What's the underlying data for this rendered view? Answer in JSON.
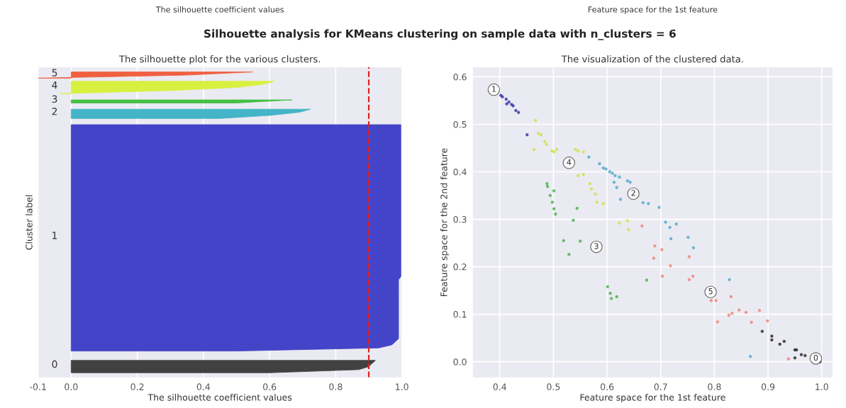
{
  "chart_data": [
    {
      "type": "area",
      "orientation": "horizontal",
      "title": "The silhouette plot for the various clusters.",
      "xlabel": "The silhouette coefficient values",
      "ylabel": "Cluster label",
      "xlim": [
        -0.1,
        1.0
      ],
      "xticks": [
        {
          "value": -0.1,
          "label": "-0.1"
        },
        {
          "value": 0.0,
          "label": "0.0"
        },
        {
          "value": 0.2,
          "label": "0.2"
        },
        {
          "value": 0.4,
          "label": "0.4"
        },
        {
          "value": 0.6,
          "label": "0.6"
        },
        {
          "value": 0.8,
          "label": "0.8"
        },
        {
          "value": 1.0,
          "label": "1.0"
        }
      ],
      "categories": [
        null,
        null,
        null,
        null,
        null,
        null,
        null,
        null,
        null,
        null,
        null,
        null,
        null,
        null,
        null,
        null,
        null,
        null,
        null,
        null,
        null,
        null,
        null,
        null,
        null,
        null,
        null,
        null,
        null,
        null,
        null,
        null,
        null,
        null,
        null,
        null,
        null,
        null,
        null,
        null,
        null,
        null,
        null,
        null,
        null,
        null,
        null,
        null,
        null,
        null,
        null,
        null,
        null,
        null,
        null,
        null,
        null,
        null,
        null,
        null,
        null,
        null,
        null,
        null,
        null,
        null,
        null,
        null,
        null,
        null,
        null,
        null,
        null,
        null,
        null,
        null,
        null,
        null,
        null,
        null,
        null,
        null,
        null,
        null,
        null,
        null,
        null,
        null,
        null,
        null,
        null,
        null,
        null,
        null,
        null,
        null,
        null,
        null,
        null,
        null
      ],
      "tick_labels": "x",
      "grid": true,
      "legend": false,
      "series": [
        {
          "color": "#414141",
          "values": [
            null,
            null,
            null,
            null,
            null,
            null,
            null,
            null,
            null,
            null,
            null,
            null,
            null,
            null,
            null,
            null,
            null,
            null,
            null,
            null,
            null,
            null,
            null,
            null,
            null,
            null,
            null,
            null,
            null,
            null,
            null,
            null,
            null,
            null,
            null,
            null,
            null,
            null,
            null,
            null,
            null,
            null,
            null,
            null,
            null,
            null,
            null,
            null,
            null,
            null,
            null,
            null,
            null,
            null,
            null,
            null,
            null,
            null,
            null,
            null,
            null,
            null,
            null,
            null,
            null,
            null,
            null,
            null,
            null,
            null,
            null,
            null,
            null,
            null,
            null,
            null,
            null,
            null,
            null,
            null,
            null,
            null,
            null,
            null,
            null,
            null,
            null,
            null,
            null,
            null,
            null,
            null,
            null,
            null,
            0.92,
            0.91,
            0.9,
            0.87,
            0.6,
            null
          ]
        },
        {
          "color": "#4444c8",
          "values": [
            null,
            null,
            null,
            null,
            null,
            null,
            null,
            null,
            null,
            null,
            null,
            null,
            null,
            null,
            null,
            null,
            null,
            null,
            0.997,
            0.997,
            0.997,
            0.997,
            0.997,
            0.997,
            0.997,
            0.997,
            0.997,
            0.997,
            0.997,
            0.997,
            0.997,
            0.997,
            0.997,
            0.997,
            0.997,
            0.997,
            0.997,
            0.997,
            0.997,
            0.997,
            0.997,
            0.997,
            0.997,
            0.997,
            0.997,
            0.997,
            0.997,
            0.997,
            0.997,
            0.997,
            0.997,
            0.997,
            0.997,
            0.997,
            0.997,
            0.997,
            0.997,
            0.997,
            0.997,
            0.997,
            0.997,
            0.997,
            0.997,
            0.997,
            0.997,
            0.997,
            0.997,
            0.997,
            0.99,
            0.99,
            0.99,
            0.99,
            0.99,
            0.99,
            0.99,
            0.99,
            0.99,
            0.99,
            0.99,
            0.99,
            0.99,
            0.99,
            0.99,
            0.99,
            0.99,
            0.99,
            0.99,
            0.99,
            0.98,
            0.97,
            0.93,
            0.5,
            null,
            null,
            null,
            null,
            null,
            null,
            null,
            null
          ]
        },
        {
          "color": "#44b4c8",
          "values": [
            null,
            null,
            null,
            null,
            null,
            null,
            null,
            null,
            null,
            null,
            null,
            null,
            null,
            0.724,
            0.69,
            0.6,
            0.45,
            null,
            null,
            null,
            null,
            null,
            null,
            null,
            null,
            null,
            null,
            null,
            null,
            null,
            null,
            null,
            null,
            null,
            null,
            null,
            null,
            null,
            null,
            null,
            null,
            null,
            null,
            null,
            null,
            null,
            null,
            null,
            null,
            null,
            null,
            null,
            null,
            null,
            null,
            null,
            null,
            null,
            null,
            null,
            null,
            null,
            null,
            null,
            null,
            null,
            null,
            null,
            null,
            null,
            null,
            null,
            null,
            null,
            null,
            null,
            null,
            null,
            null,
            null,
            null,
            null,
            null,
            null,
            null,
            null,
            null,
            null,
            null,
            null,
            null,
            null,
            null,
            null,
            null,
            null,
            null,
            null,
            null,
            null
          ]
        },
        {
          "color": "#44c044",
          "values": [
            null,
            null,
            null,
            null,
            null,
            null,
            null,
            null,
            null,
            null,
            0.668,
            0.5,
            null,
            null,
            null,
            null,
            null,
            null,
            null,
            null,
            null,
            null,
            null,
            null,
            null,
            null,
            null,
            null,
            null,
            null,
            null,
            null,
            null,
            null,
            null,
            null,
            null,
            null,
            null,
            null,
            null,
            null,
            null,
            null,
            null,
            null,
            null,
            null,
            null,
            null,
            null,
            null,
            null,
            null,
            null,
            null,
            null,
            null,
            null,
            null,
            null,
            null,
            null,
            null,
            null,
            null,
            null,
            null,
            null,
            null,
            null,
            null,
            null,
            null,
            null,
            null,
            null,
            null,
            null,
            null,
            null,
            null,
            null,
            null,
            null,
            null,
            null,
            null,
            null,
            null,
            null,
            null,
            null,
            null,
            null,
            null,
            null,
            null,
            null,
            null
          ]
        },
        {
          "color": "#d8f040",
          "values": [
            null,
            null,
            null,
            null,
            0.615,
            0.58,
            0.5,
            0.3,
            -0.035,
            null,
            null,
            null,
            null,
            null,
            null,
            null,
            null,
            null,
            null,
            null,
            null,
            null,
            null,
            null,
            null,
            null,
            null,
            null,
            null,
            null,
            null,
            null,
            null,
            null,
            null,
            null,
            null,
            null,
            null,
            null,
            null,
            null,
            null,
            null,
            null,
            null,
            null,
            null,
            null,
            null,
            null,
            null,
            null,
            null,
            null,
            null,
            null,
            null,
            null,
            null,
            null,
            null,
            null,
            null,
            null,
            null,
            null,
            null,
            null,
            null,
            null,
            null,
            null,
            null,
            null,
            null,
            null,
            null,
            null,
            null,
            null,
            null,
            null,
            null,
            null,
            null,
            null,
            null,
            null,
            null,
            null,
            null,
            null,
            null,
            null,
            null,
            null,
            null,
            null,
            null
          ]
        },
        {
          "color": "#f06040",
          "values": [
            null,
            0.549,
            0.35,
            -0.1,
            null,
            null,
            null,
            null,
            null,
            null,
            null,
            null,
            null,
            null,
            null,
            null,
            null,
            null,
            null,
            null,
            null,
            null,
            null,
            null,
            null,
            null,
            null,
            null,
            null,
            null,
            null,
            null,
            null,
            null,
            null,
            null,
            null,
            null,
            null,
            null,
            null,
            null,
            null,
            null,
            null,
            null,
            null,
            null,
            null,
            null,
            null,
            null,
            null,
            null,
            null,
            null,
            null,
            null,
            null,
            null,
            null,
            null,
            null,
            null,
            null,
            null,
            null,
            null,
            null,
            null,
            null,
            null,
            null,
            null,
            null,
            null,
            null,
            null,
            null,
            null,
            null,
            null,
            null,
            null,
            null,
            null,
            null,
            null,
            null,
            null,
            null,
            null,
            null,
            null,
            null,
            null,
            null,
            null,
            null,
            null
          ]
        }
      ],
      "ref_lines": [
        {
          "axis": "x",
          "value": 0.9,
          "color": "#e02020",
          "line_style": "dashed"
        }
      ],
      "annotations": [
        "The silhouette coefficient values",
        "Silhouette analysis for KMeans clustering on sample data with n_clusters = 6",
        "0",
        "1",
        "2",
        "3",
        "4",
        "5"
      ]
    },
    {
      "type": "scatter",
      "title": "The visualization of the clustered data.",
      "xlabel": "Feature space for the 1st feature",
      "ylabel": "Feature space for the 2nd feature",
      "xlim": [
        0.35,
        1.02
      ],
      "xticks": [
        {
          "value": 0.4,
          "label": "0.4"
        },
        {
          "value": 0.5,
          "label": "0.5"
        },
        {
          "value": 0.6,
          "label": "0.6"
        },
        {
          "value": 0.7,
          "label": "0.7"
        },
        {
          "value": 0.8,
          "label": "0.8"
        },
        {
          "value": 0.9,
          "label": "0.9"
        },
        {
          "value": 1.0,
          "label": "1.0"
        }
      ],
      "ylim": [
        -0.033,
        0.62
      ],
      "yticks": [
        {
          "value": 0.0,
          "label": "0.0"
        },
        {
          "value": 0.1,
          "label": "0.1"
        },
        {
          "value": 0.2,
          "label": "0.2"
        },
        {
          "value": 0.3,
          "label": "0.3"
        },
        {
          "value": 0.4,
          "label": "0.4"
        },
        {
          "value": 0.5,
          "label": "0.5"
        },
        {
          "value": 0.6,
          "label": "0.6"
        }
      ],
      "grid": true,
      "legend": false,
      "marker": "circle",
      "series": [
        {
          "color": "#202020",
          "x": [
            0.889,
            0.907,
            0.907,
            0.922,
            0.93,
            0.95,
            0.953,
            0.95,
            0.962,
            0.969,
            0.997
          ],
          "values": [
            0.064,
            0.054,
            0.046,
            0.037,
            0.043,
            0.025,
            0.025,
            0.008,
            0.015,
            0.013,
            0.0
          ]
        },
        {
          "color": "#2a2aa8",
          "x": [
            0.402,
            0.405,
            0.412,
            0.413,
            0.417,
            0.422,
            0.425,
            0.43,
            0.435,
            0.451
          ],
          "values": [
            0.561,
            0.558,
            0.553,
            0.543,
            0.547,
            0.542,
            0.539,
            0.529,
            0.525,
            0.478
          ]
        },
        {
          "color": "#4aa8c8",
          "x": [
            0.566,
            0.586,
            0.593,
            0.598,
            0.605,
            0.61,
            0.615,
            0.623,
            0.613,
            0.618,
            0.625,
            0.638,
            0.643,
            0.667,
            0.677,
            0.697,
            0.709,
            0.717,
            0.729,
            0.719,
            0.751,
            0.761,
            0.828,
            0.867
          ],
          "values": [
            0.431,
            0.417,
            0.408,
            0.406,
            0.4,
            0.397,
            0.392,
            0.389,
            0.378,
            0.367,
            0.342,
            0.381,
            0.378,
            0.335,
            0.333,
            0.325,
            0.294,
            0.283,
            0.29,
            0.259,
            0.262,
            0.24,
            0.173,
            0.011
          ]
        },
        {
          "color": "#44b044",
          "x": [
            0.488,
            0.489,
            0.494,
            0.501,
            0.498,
            0.501,
            0.504,
            0.544,
            0.537,
            0.519,
            0.55,
            0.529,
            0.601,
            0.606,
            0.608,
            0.618,
            0.674
          ],
          "values": [
            0.375,
            0.369,
            0.35,
            0.36,
            0.336,
            0.322,
            0.311,
            0.323,
            0.298,
            0.255,
            0.254,
            0.226,
            0.158,
            0.144,
            0.133,
            0.137,
            0.172
          ]
        },
        {
          "color": "#d0e040",
          "x": [
            0.467,
            0.464,
            0.472,
            0.477,
            0.484,
            0.487,
            0.497,
            0.501,
            0.506,
            0.541,
            0.546,
            0.556,
            0.546,
            0.556,
            0.568,
            0.571,
            0.578,
            0.581,
            0.593,
            0.623,
            0.638,
            0.64
          ],
          "values": [
            0.508,
            0.447,
            0.481,
            0.478,
            0.464,
            0.458,
            0.444,
            0.442,
            0.447,
            0.447,
            0.444,
            0.442,
            0.392,
            0.394,
            0.375,
            0.364,
            0.353,
            0.336,
            0.333,
            0.292,
            0.297,
            0.278
          ]
        },
        {
          "color": "#f08070",
          "x": [
            0.665,
            0.689,
            0.687,
            0.702,
            0.703,
            0.718,
            0.753,
            0.753,
            0.76,
            0.794,
            0.803,
            0.806,
            0.831,
            0.827,
            0.833,
            0.846,
            0.859,
            0.869,
            0.884,
            0.899,
            0.938
          ],
          "values": [
            0.286,
            0.244,
            0.218,
            0.236,
            0.18,
            0.202,
            0.221,
            0.173,
            0.18,
            0.129,
            0.129,
            0.084,
            0.137,
            0.098,
            0.102,
            0.109,
            0.104,
            0.083,
            0.108,
            0.086,
            0.006
          ]
        }
      ],
      "annotations": [
        "Feature space for the 1st feature",
        {
          "text": "0",
          "x": 0.989,
          "y": 0.007
        },
        {
          "text": "1",
          "x": 0.389,
          "y": 0.573
        },
        {
          "text": "2",
          "x": 0.649,
          "y": 0.354
        },
        {
          "text": "3",
          "x": 0.58,
          "y": 0.242
        },
        {
          "text": "4",
          "x": 0.529,
          "y": 0.419
        },
        {
          "text": "5",
          "x": 0.793,
          "y": 0.147
        }
      ]
    }
  ]
}
